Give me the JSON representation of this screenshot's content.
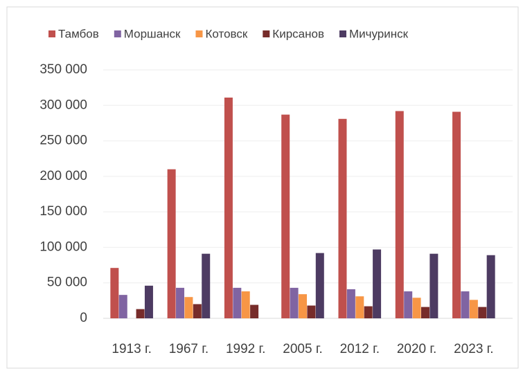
{
  "chart_data": {
    "type": "bar",
    "categories": [
      "1913 г.",
      "1967 г.",
      "1992 г.",
      "2005 г.",
      "2012 г.",
      "2020 г.",
      "2023 г."
    ],
    "series": [
      {
        "name": "Тамбов",
        "color": "#c0504d",
        "values": [
          71000,
          210000,
          311000,
          287000,
          281000,
          292000,
          291000
        ]
      },
      {
        "name": "Моршанск",
        "color": "#8064a2",
        "values": [
          33000,
          43000,
          43000,
          43000,
          41000,
          38000,
          38000
        ]
      },
      {
        "name": "Котовск",
        "color": "#f79646",
        "values": [
          null,
          30000,
          38000,
          34000,
          31000,
          29000,
          26000
        ]
      },
      {
        "name": "Кирсанов",
        "color": "#772c2a",
        "values": [
          13000,
          20000,
          19000,
          18000,
          17000,
          16000,
          16000
        ]
      },
      {
        "name": "Мичуринск",
        "color": "#4d3b62",
        "values": [
          46000,
          91000,
          null,
          92000,
          97000,
          91000,
          89000
        ]
      }
    ],
    "ylim": [
      0,
      350000
    ],
    "yticks": [
      0,
      {
        "value": 50000,
        "label": "50 000"
      },
      {
        "value": 100000,
        "label": "100 000"
      },
      {
        "value": 150000,
        "label": "150 000"
      },
      {
        "value": 200000,
        "label": "200 000"
      },
      {
        "value": 250000,
        "label": "250 000"
      },
      {
        "value": 300000,
        "label": "300 000"
      },
      {
        "value": 350000,
        "label": "350 000"
      }
    ],
    "grid": true,
    "legend": "top"
  }
}
